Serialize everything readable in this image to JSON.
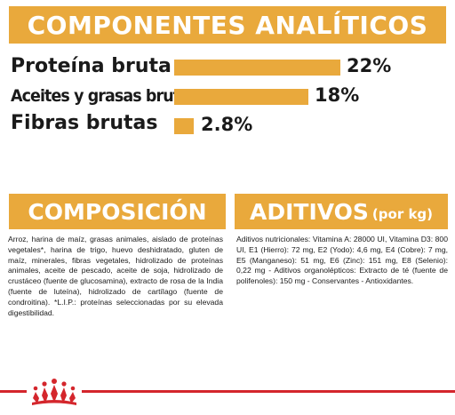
{
  "analytic_components": {
    "title": "COMPONENTES ANALÍTICOS",
    "items": [
      {
        "label": "Proteína bruta",
        "value_text": "22%",
        "value": 22
      },
      {
        "label": "Aceites y grasas brutos",
        "value_text": "18%",
        "value": 18
      },
      {
        "label": "Fibras brutas",
        "value_text": "2.8%",
        "value": 2.8
      }
    ]
  },
  "composition": {
    "title": "COMPOSICIÓN",
    "text": "Arroz, harina de maíz, grasas animales, aislado de proteínas vegetales*, harina de trigo, huevo deshidratado, gluten de maíz, minerales, fibras vegetales, hidrolizado de proteínas animales, aceite de pescado, aceite de soja, hidrolizado de crustáceo (fuente de glucosamina), extracto de rosa de la India (fuente de luteína), hidrolizado de cartílago (fuente de condroitina). *L.I.P.: proteínas seleccionadas por su elevada digestibilidad."
  },
  "additives": {
    "title": "ADITIVOS",
    "unit": "(por kg)",
    "text": "Aditivos nutricionales: Vitamina A: 28000 UI, Vitamina D3: 800 UI, E1 (Hierro): 72 mg, E2 (Yodo): 4,6 mg, E4 (Cobre): 7 mg, E5 (Manganeso): 51 mg, E6 (Zinc): 151 mg, E8 (Selenio): 0,22 mg - Aditivos organolépticos: Extracto de té (fuente de polifenoles): 150 mg - Conservantes - Antioxidantes."
  },
  "colors": {
    "accent": "#e9a93c",
    "brand_red": "#d4262c",
    "text": "#1a1a1a"
  },
  "icons": {
    "logo": "royal-canin-crown-icon"
  }
}
